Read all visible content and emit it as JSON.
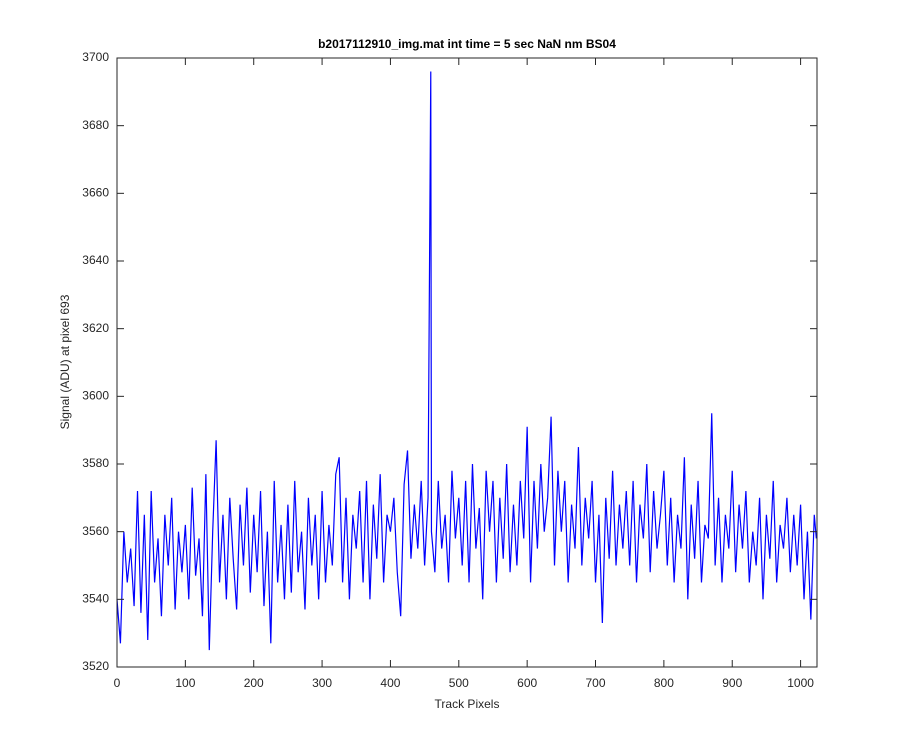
{
  "chart_data": {
    "type": "line",
    "title": "b2017112910_img.mat int time = 5 sec  NaN nm BS04",
    "xlabel": "Track Pixels",
    "ylabel": "Signal (ADU) at pixel 693",
    "xlim": [
      0,
      1024
    ],
    "ylim": [
      3520,
      3700
    ],
    "xticks": [
      0,
      100,
      200,
      300,
      400,
      500,
      600,
      700,
      800,
      900,
      1000
    ],
    "yticks": [
      3520,
      3540,
      3560,
      3580,
      3600,
      3620,
      3640,
      3660,
      3680,
      3700
    ],
    "grid": false,
    "x": [
      0,
      5,
      10,
      15,
      20,
      25,
      30,
      35,
      40,
      45,
      50,
      55,
      60,
      65,
      70,
      75,
      80,
      85,
      90,
      95,
      100,
      105,
      110,
      115,
      120,
      125,
      130,
      135,
      140,
      145,
      150,
      155,
      160,
      165,
      170,
      175,
      180,
      185,
      190,
      195,
      200,
      205,
      210,
      215,
      220,
      225,
      230,
      235,
      240,
      245,
      250,
      255,
      260,
      265,
      270,
      275,
      280,
      285,
      290,
      295,
      300,
      305,
      310,
      315,
      320,
      325,
      330,
      335,
      340,
      345,
      350,
      355,
      360,
      365,
      370,
      375,
      380,
      385,
      390,
      395,
      400,
      405,
      410,
      415,
      420,
      425,
      430,
      435,
      440,
      445,
      450,
      455,
      459,
      460,
      465,
      470,
      475,
      480,
      485,
      490,
      495,
      500,
      505,
      510,
      515,
      520,
      525,
      530,
      535,
      540,
      545,
      550,
      555,
      560,
      565,
      570,
      575,
      580,
      585,
      590,
      595,
      600,
      605,
      610,
      615,
      620,
      625,
      630,
      635,
      640,
      645,
      650,
      655,
      660,
      665,
      670,
      675,
      680,
      685,
      690,
      695,
      700,
      705,
      710,
      715,
      720,
      725,
      730,
      735,
      740,
      745,
      750,
      755,
      760,
      765,
      770,
      775,
      780,
      785,
      790,
      795,
      800,
      805,
      810,
      815,
      820,
      825,
      830,
      835,
      840,
      845,
      850,
      855,
      860,
      865,
      870,
      875,
      880,
      885,
      890,
      895,
      900,
      905,
      910,
      915,
      920,
      925,
      930,
      935,
      940,
      945,
      950,
      955,
      960,
      965,
      970,
      975,
      980,
      985,
      990,
      995,
      1000,
      1005,
      1010,
      1015,
      1020,
      1023
    ],
    "series": [
      {
        "name": "signal",
        "color": "#0000ff",
        "values": [
          3540,
          3527,
          3560,
          3545,
          3555,
          3538,
          3572,
          3536,
          3565,
          3528,
          3572,
          3545,
          3558,
          3535,
          3565,
          3550,
          3570,
          3537,
          3560,
          3548,
          3562,
          3540,
          3573,
          3547,
          3558,
          3535,
          3577,
          3525,
          3560,
          3587,
          3545,
          3565,
          3540,
          3570,
          3552,
          3537,
          3568,
          3550,
          3573,
          3542,
          3565,
          3548,
          3572,
          3538,
          3560,
          3527,
          3575,
          3545,
          3562,
          3540,
          3568,
          3542,
          3575,
          3548,
          3560,
          3537,
          3570,
          3550,
          3565,
          3540,
          3572,
          3545,
          3562,
          3550,
          3577,
          3582,
          3545,
          3570,
          3540,
          3565,
          3555,
          3572,
          3545,
          3575,
          3540,
          3568,
          3552,
          3577,
          3545,
          3565,
          3560,
          3570,
          3548,
          3535,
          3574,
          3584,
          3552,
          3568,
          3555,
          3575,
          3550,
          3570,
          3696,
          3560,
          3548,
          3575,
          3555,
          3565,
          3545,
          3578,
          3558,
          3570,
          3550,
          3575,
          3545,
          3580,
          3555,
          3567,
          3540,
          3578,
          3560,
          3575,
          3545,
          3570,
          3552,
          3580,
          3548,
          3568,
          3550,
          3575,
          3558,
          3591,
          3545,
          3575,
          3555,
          3580,
          3560,
          3570,
          3594,
          3550,
          3578,
          3560,
          3575,
          3545,
          3568,
          3555,
          3585,
          3550,
          3570,
          3558,
          3575,
          3545,
          3565,
          3533,
          3570,
          3552,
          3578,
          3550,
          3568,
          3555,
          3572,
          3550,
          3575,
          3545,
          3568,
          3558,
          3580,
          3548,
          3572,
          3555,
          3565,
          3578,
          3550,
          3570,
          3545,
          3565,
          3555,
          3582,
          3540,
          3568,
          3552,
          3575,
          3545,
          3562,
          3558,
          3595,
          3550,
          3570,
          3545,
          3565,
          3555,
          3578,
          3548,
          3568,
          3555,
          3572,
          3545,
          3560,
          3550,
          3570,
          3540,
          3565,
          3552,
          3575,
          3545,
          3562,
          3555,
          3570,
          3548,
          3565,
          3550,
          3568,
          3540,
          3560,
          3534,
          3565,
          3558
        ]
      }
    ]
  }
}
